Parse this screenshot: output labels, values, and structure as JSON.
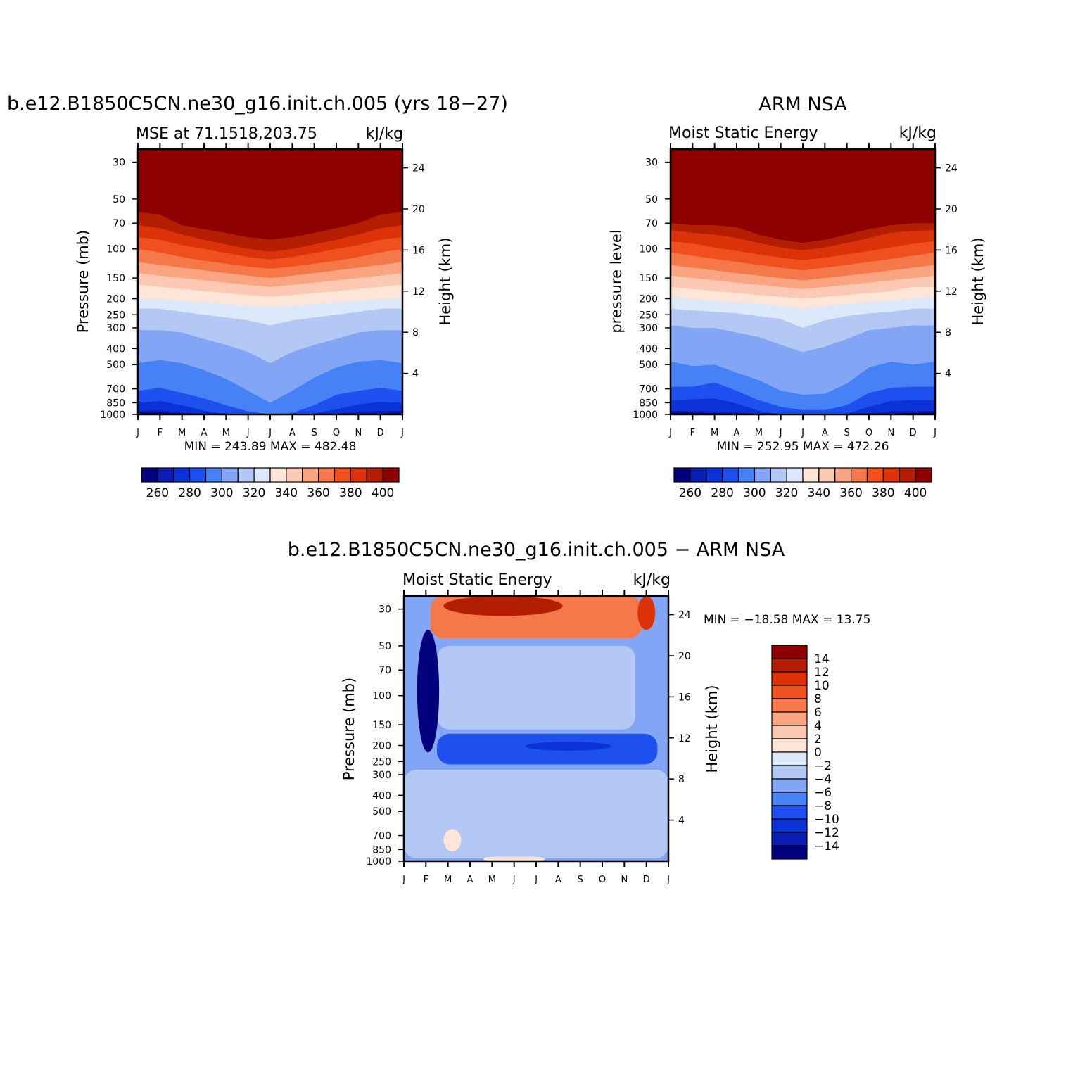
{
  "panels": [
    {
      "title": "b.e12.B1850C5CN.ne30_g16.init.ch.005 (yrs 18−27)",
      "left_label": "MSE at 71.1518,203.75",
      "right_label": "kJ/kg",
      "y_label_left": "Pressure (mb)",
      "y_label_right": "Height (km)",
      "minmax": "MIN = 243.89 MAX = 482.48"
    },
    {
      "title": "ARM NSA",
      "left_label": "Moist Static Energy",
      "right_label": "kJ/kg",
      "y_label_left": "pressure level",
      "y_label_right": "Height (km)",
      "minmax": "MIN = 252.95 MAX = 472.26"
    },
    {
      "title": "b.e12.B1850C5CN.ne30_g16.init.ch.005 − ARM NSA",
      "left_label": "Moist Static Energy",
      "right_label": "kJ/kg",
      "y_label_left": "Pressure (mb)",
      "y_label_right": "Height (km)",
      "minmax": "MIN = −18.58 MAX =   13.75"
    }
  ],
  "chart_data": [
    {
      "type": "heatmap",
      "subtype": "filled contour, pressure vs month",
      "x_ticks": [
        "J",
        "F",
        "M",
        "A",
        "M",
        "J",
        "J",
        "A",
        "S",
        "O",
        "N",
        "D",
        "J"
      ],
      "y_ticks_pressure": [
        30,
        50,
        70,
        100,
        150,
        200,
        250,
        300,
        400,
        500,
        700,
        850,
        1000
      ],
      "y_ticks_height_km": [
        24,
        20,
        16,
        12,
        8,
        4
      ],
      "y_scale": "log",
      "levels": [
        260,
        270,
        280,
        290,
        300,
        310,
        320,
        330,
        340,
        350,
        360,
        370,
        380,
        390,
        400
      ],
      "colorbar_labels": [
        "260",
        "280",
        "300",
        "320",
        "340",
        "360",
        "380",
        "400"
      ],
      "colors": [
        "#00007d",
        "#0a1eb4",
        "#0a32d7",
        "#1e50f0",
        "#4682f5",
        "#82a5f5",
        "#b4c8f5",
        "#dce9fa",
        "#fde6d7",
        "#fccab4",
        "#f9a582",
        "#f5784b",
        "#f0501e",
        "#dc320a",
        "#b41e00",
        "#8c0000"
      ],
      "boundaries_pressure_at_months": {
        "260": [
          975,
          975,
          990,
          1000,
          1000,
          1000,
          1000,
          1000,
          1000,
          1000,
          1000,
          990,
          975
        ],
        "270": [
          950,
          945,
          975,
          995,
          1000,
          1000,
          1000,
          1000,
          1000,
          990,
          965,
          950,
          950
        ],
        "280": [
          850,
          830,
          880,
          950,
          990,
          1000,
          1000,
          1000,
          985,
          930,
          870,
          840,
          850
        ],
        "290": [
          720,
          690,
          740,
          800,
          880,
          960,
          1000,
          980,
          880,
          760,
          720,
          690,
          720
        ],
        "300": [
          490,
          470,
          490,
          540,
          610,
          720,
          850,
          720,
          600,
          520,
          480,
          470,
          490
        ],
        "310": [
          310,
          310,
          320,
          350,
          380,
          420,
          490,
          420,
          380,
          350,
          320,
          310,
          310
        ],
        "320": [
          230,
          230,
          240,
          250,
          260,
          270,
          290,
          270,
          260,
          250,
          240,
          230,
          230
        ],
        "330": [
          200,
          200,
          205,
          210,
          215,
          220,
          225,
          220,
          215,
          210,
          205,
          200,
          200
        ],
        "340": [
          165,
          170,
          175,
          180,
          185,
          190,
          195,
          190,
          185,
          180,
          175,
          170,
          165
        ],
        "350": [
          140,
          145,
          150,
          155,
          160,
          165,
          170,
          165,
          160,
          155,
          150,
          145,
          140
        ],
        "360": [
          120,
          125,
          130,
          135,
          140,
          145,
          150,
          145,
          140,
          135,
          130,
          125,
          120
        ],
        "370": [
          100,
          105,
          112,
          118,
          123,
          128,
          132,
          128,
          123,
          118,
          112,
          105,
          100
        ],
        "380": [
          85,
          88,
          95,
          100,
          106,
          112,
          116,
          112,
          106,
          100,
          95,
          88,
          85
        ],
        "390": [
          72,
          75,
          82,
          88,
          94,
          100,
          104,
          100,
          94,
          88,
          82,
          75,
          72
        ],
        "400": [
          60,
          62,
          72,
          76,
          80,
          85,
          88,
          85,
          80,
          75,
          70,
          62,
          60
        ]
      }
    },
    {
      "type": "heatmap",
      "subtype": "filled contour, pressure vs month",
      "x_ticks": [
        "J",
        "F",
        "M",
        "A",
        "M",
        "J",
        "J",
        "A",
        "S",
        "O",
        "N",
        "D",
        "J"
      ],
      "y_ticks_pressure": [
        30,
        50,
        70,
        100,
        150,
        200,
        250,
        300,
        400,
        500,
        700,
        850,
        1000
      ],
      "y_ticks_height_km": [
        24,
        20,
        16,
        12,
        8,
        4
      ],
      "y_scale": "log",
      "levels": [
        260,
        270,
        280,
        290,
        300,
        310,
        320,
        330,
        340,
        350,
        360,
        370,
        380,
        390,
        400
      ],
      "colorbar_labels": [
        "260",
        "280",
        "300",
        "320",
        "340",
        "360",
        "380",
        "400"
      ],
      "colors": [
        "#00007d",
        "#0a1eb4",
        "#0a32d7",
        "#1e50f0",
        "#4682f5",
        "#82a5f5",
        "#b4c8f5",
        "#dce9fa",
        "#fde6d7",
        "#fccab4",
        "#f9a582",
        "#f5784b",
        "#f0501e",
        "#dc320a",
        "#b41e00",
        "#8c0000"
      ],
      "boundaries_pressure_at_months": {
        "260": [
          975,
          975,
          985,
          995,
          1000,
          1000,
          1000,
          1000,
          1000,
          1000,
          990,
          980,
          975
        ],
        "270": [
          950,
          950,
          960,
          975,
          995,
          1000,
          1000,
          1000,
          1000,
          985,
          960,
          950,
          950
        ],
        "280": [
          820,
          810,
          800,
          860,
          950,
          1000,
          1000,
          1000,
          990,
          900,
          830,
          820,
          820
        ],
        "290": [
          680,
          680,
          640,
          720,
          820,
          900,
          940,
          940,
          880,
          740,
          690,
          680,
          680
        ],
        "300": [
          480,
          510,
          500,
          560,
          620,
          720,
          760,
          750,
          650,
          520,
          480,
          500,
          480
        ],
        "310": [
          290,
          300,
          300,
          320,
          340,
          380,
          420,
          390,
          350,
          310,
          300,
          290,
          290
        ],
        "320": [
          230,
          235,
          240,
          245,
          255,
          265,
          300,
          270,
          255,
          245,
          240,
          230,
          230
        ],
        "330": [
          195,
          200,
          205,
          210,
          215,
          220,
          230,
          220,
          215,
          210,
          205,
          200,
          195
        ],
        "340": [
          170,
          175,
          180,
          185,
          190,
          195,
          200,
          195,
          190,
          185,
          180,
          170,
          170
        ],
        "350": [
          145,
          150,
          155,
          160,
          165,
          170,
          175,
          170,
          165,
          160,
          155,
          150,
          145
        ],
        "360": [
          125,
          130,
          135,
          140,
          145,
          150,
          155,
          150,
          145,
          140,
          135,
          130,
          125
        ],
        "370": [
          105,
          110,
          115,
          120,
          125,
          130,
          135,
          130,
          125,
          120,
          115,
          110,
          105
        ],
        "380": [
          90,
          93,
          98,
          103,
          108,
          113,
          117,
          113,
          108,
          103,
          98,
          93,
          90
        ],
        "390": [
          77,
          80,
          82,
          86,
          92,
          98,
          102,
          98,
          92,
          86,
          80,
          78,
          77
        ],
        "400": [
          70,
          72,
          72,
          74,
          82,
          88,
          92,
          88,
          82,
          76,
          72,
          70,
          70
        ]
      }
    },
    {
      "type": "heatmap",
      "subtype": "filled contour difference, pressure vs month",
      "x_ticks": [
        "J",
        "F",
        "M",
        "A",
        "M",
        "J",
        "J",
        "A",
        "S",
        "O",
        "N",
        "D",
        "J"
      ],
      "y_ticks_pressure": [
        30,
        50,
        70,
        100,
        150,
        200,
        250,
        300,
        400,
        500,
        700,
        850,
        1000
      ],
      "y_ticks_height_km": [
        24,
        20,
        16,
        12,
        8,
        4
      ],
      "y_scale": "log",
      "levels": [
        -14,
        -12,
        -10,
        -8,
        -6,
        -4,
        -2,
        0,
        2,
        4,
        6,
        8,
        10,
        12,
        14
      ],
      "colorbar_labels": [
        "14",
        "12",
        "10",
        "8",
        "6",
        "4",
        "2",
        "0",
        "−2",
        "−4",
        "−6",
        "−8",
        "−10",
        "−12",
        "−14"
      ],
      "colors": [
        "#00007d",
        "#0a1eb4",
        "#0a32d7",
        "#1e50f0",
        "#4682f5",
        "#82a5f5",
        "#b4c8f5",
        "#dce9fa",
        "#fde6d7",
        "#fccab4",
        "#f9a582",
        "#f5784b",
        "#f0501e",
        "#dc320a",
        "#b41e00",
        "#8c0000"
      ],
      "regions": [
        {
          "name": "stratosphere-positive",
          "value": 6,
          "months": [
            1.2,
            10.8
          ],
          "pressure": [
            25,
            45
          ]
        },
        {
          "name": "stratosphere-strong-positive",
          "value": 12,
          "months": [
            1.8,
            7.2
          ],
          "pressure": [
            25,
            33
          ]
        },
        {
          "name": "november-peak",
          "value": 10,
          "months": [
            10.6,
            11.4
          ],
          "pressure": [
            25,
            40
          ]
        },
        {
          "name": "upper-troposphere-weak",
          "value": -3,
          "months": [
            1.5,
            10.5
          ],
          "pressure": [
            50,
            160
          ]
        },
        {
          "name": "february-minimum",
          "value": -15,
          "months": [
            0.6,
            1.6
          ],
          "pressure": [
            40,
            220
          ]
        },
        {
          "name": "tropopause-negative-band",
          "value": -9,
          "months": [
            1.5,
            11.5
          ],
          "pressure": [
            170,
            260
          ]
        },
        {
          "name": "tropopause-strong",
          "value": -11,
          "months": [
            5.5,
            9.4
          ],
          "pressure": [
            190,
            215
          ]
        },
        {
          "name": "mid-troposphere-weak",
          "value": -3,
          "months": [
            0,
            12
          ],
          "pressure": [
            280,
            960
          ]
        },
        {
          "name": "lower-positive-march",
          "value": 1,
          "months": [
            1.8,
            2.6
          ],
          "pressure": [
            640,
            870
          ]
        },
        {
          "name": "surface-positive",
          "value": 1,
          "months": [
            3.6,
            6.4
          ],
          "pressure": [
            940,
            1000
          ]
        }
      ]
    }
  ],
  "colorbar_diff_labels": [
    "14",
    "12",
    "10",
    "8",
    "6",
    "4",
    "2",
    "0",
    "−2",
    "−4",
    "−6",
    "−8",
    "−10",
    "−12",
    "−14"
  ]
}
